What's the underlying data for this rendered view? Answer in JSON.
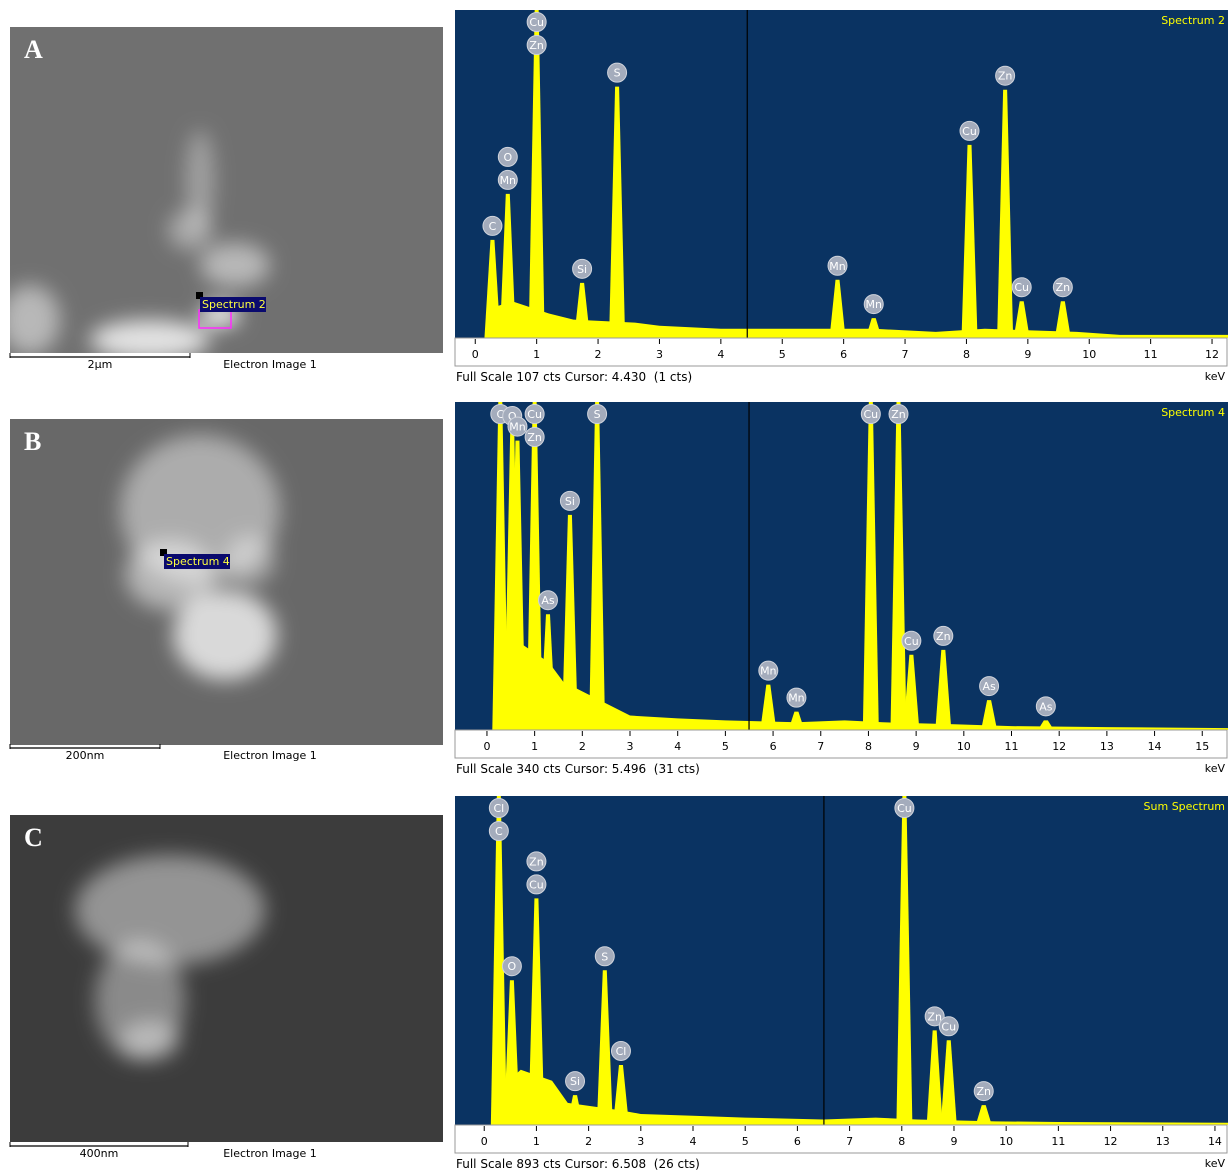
{
  "panels": [
    {
      "label": "A",
      "scale_bar": "2µm",
      "caption": "Electron Image 1",
      "marker": "Spectrum 2"
    },
    {
      "label": "B",
      "scale_bar": "200nm",
      "caption": "Electron Image 1",
      "marker": "Spectrum 4"
    },
    {
      "label": "C",
      "scale_bar": "400nm",
      "caption": "Electron Image 1"
    }
  ],
  "chart_data": [
    {
      "type": "spectrum",
      "title": "Spectrum 2",
      "full_scale": "Full Scale 107 cts",
      "cursor": "Cursor: 4.430  (1 cts)",
      "x_unit": "keV",
      "xlim": [
        -0.33,
        12.26
      ],
      "ylim": [
        0,
        107
      ],
      "xticks": [
        0,
        1,
        2,
        3,
        4,
        5,
        6,
        7,
        8,
        9,
        10,
        11,
        12
      ],
      "cursor_x": 4.43,
      "color": "#ffff00",
      "background_color": "#0a3362",
      "peaks": [
        {
          "labels": [
            "C"
          ],
          "x": 0.28,
          "value": 32
        },
        {
          "labels": [
            "O",
            "Mn"
          ],
          "x": 0.53,
          "value": 47
        },
        {
          "labels": [
            "Cu",
            "Zn"
          ],
          "x": 1.0,
          "value": 107
        },
        {
          "labels": [
            "Si"
          ],
          "x": 1.74,
          "value": 18
        },
        {
          "labels": [
            "S"
          ],
          "x": 2.31,
          "value": 82
        },
        {
          "labels": [
            "Mn"
          ],
          "x": 5.9,
          "value": 19
        },
        {
          "labels": [
            "Mn"
          ],
          "x": 6.49,
          "value": 6.5
        },
        {
          "labels": [
            "Cu"
          ],
          "x": 8.05,
          "value": 63
        },
        {
          "labels": [
            "Zn"
          ],
          "x": 8.63,
          "value": 81
        },
        {
          "labels": [
            "Cu"
          ],
          "x": 8.9,
          "value": 12
        },
        {
          "labels": [
            "Zn"
          ],
          "x": 9.57,
          "value": 12
        }
      ],
      "background": {
        "x": [
          0.15,
          0.3,
          0.6,
          1.2,
          1.6,
          2.6,
          3,
          4,
          5,
          6.5,
          7.5,
          8.3,
          9.8,
          10.5,
          12.26
        ],
        "values": [
          0,
          10,
          12,
          8,
          6,
          5,
          4,
          3,
          3,
          3,
          2,
          3,
          2,
          1,
          1
        ]
      }
    },
    {
      "type": "spectrum",
      "title": "Spectrum 4",
      "full_scale": "Full Scale 340 cts",
      "cursor": "Cursor: 5.496  (31 cts)",
      "x_unit": "keV",
      "xlim": [
        -0.67,
        15.54
      ],
      "ylim": [
        0,
        340
      ],
      "xticks": [
        0,
        1,
        2,
        3,
        4,
        5,
        6,
        7,
        8,
        9,
        10,
        11,
        12,
        13,
        14,
        15
      ],
      "cursor_x": 5.496,
      "color": "#ffff00",
      "background_color": "#0a3362",
      "peaks": [
        {
          "labels": [
            "C"
          ],
          "x": 0.28,
          "value": 340
        },
        {
          "labels": [
            "O"
          ],
          "x": 0.53,
          "value": 311
        },
        {
          "labels": [
            "Mn"
          ],
          "x": 0.64,
          "value": 300
        },
        {
          "labels": [
            "Cu",
            "Zn"
          ],
          "x": 1.0,
          "value": 340
        },
        {
          "labels": [
            "As"
          ],
          "x": 1.28,
          "value": 120
        },
        {
          "labels": [
            "Si"
          ],
          "x": 1.74,
          "value": 223
        },
        {
          "labels": [
            "S"
          ],
          "x": 2.31,
          "value": 340
        },
        {
          "labels": [
            "Mn"
          ],
          "x": 5.9,
          "value": 47
        },
        {
          "labels": [
            "Mn"
          ],
          "x": 6.49,
          "value": 19
        },
        {
          "labels": [
            "Cu"
          ],
          "x": 8.05,
          "value": 340
        },
        {
          "labels": [
            "Zn"
          ],
          "x": 8.63,
          "value": 340
        },
        {
          "labels": [
            "Cu"
          ],
          "x": 8.9,
          "value": 78
        },
        {
          "labels": [
            "Zn"
          ],
          "x": 9.57,
          "value": 83
        },
        {
          "labels": [
            "As"
          ],
          "x": 10.53,
          "value": 31
        },
        {
          "labels": [
            "As"
          ],
          "x": 11.72,
          "value": 10
        }
      ],
      "background": {
        "x": [
          0.15,
          0.3,
          0.7,
          1.3,
          1.6,
          2.6,
          3,
          4,
          5,
          6.5,
          7.5,
          8.3,
          9.8,
          11,
          13,
          15.54
        ],
        "values": [
          0,
          60,
          90,
          70,
          50,
          25,
          15,
          12,
          10,
          8,
          10,
          8,
          6,
          4,
          3,
          2
        ]
      }
    },
    {
      "type": "spectrum",
      "title": "Sum Spectrum",
      "full_scale": "Full Scale 893 cts",
      "cursor": "Cursor: 6.508  (26 cts)",
      "x_unit": "keV",
      "xlim": [
        -0.56,
        14.25
      ],
      "ylim": [
        0,
        893
      ],
      "xticks": [
        0,
        1,
        2,
        3,
        4,
        5,
        6,
        7,
        8,
        9,
        10,
        11,
        12,
        13,
        14
      ],
      "cursor_x": 6.508,
      "color": "#ffff00",
      "background_color": "#0a3362",
      "peaks": [
        {
          "labels": [
            "Cl",
            "C"
          ],
          "x": 0.28,
          "value": 893
        },
        {
          "labels": [
            "O"
          ],
          "x": 0.53,
          "value": 393
        },
        {
          "labels": [
            "Zn",
            "Cu"
          ],
          "x": 1.0,
          "value": 615
        },
        {
          "labels": [
            "Si"
          ],
          "x": 1.74,
          "value": 81
        },
        {
          "labels": [
            "S"
          ],
          "x": 2.31,
          "value": 420
        },
        {
          "labels": [
            "Cl"
          ],
          "x": 2.62,
          "value": 163
        },
        {
          "labels": [
            "Cu"
          ],
          "x": 8.05,
          "value": 893
        },
        {
          "labels": [
            "Zn"
          ],
          "x": 8.63,
          "value": 257
        },
        {
          "labels": [
            "Cu"
          ],
          "x": 8.9,
          "value": 230
        },
        {
          "labels": [
            "Zn"
          ],
          "x": 9.57,
          "value": 54
        }
      ],
      "background": {
        "x": [
          0.15,
          0.3,
          0.7,
          1.3,
          1.6,
          2.6,
          3,
          4,
          5,
          6.5,
          7.5,
          8.3,
          9.8,
          11,
          14.25
        ],
        "values": [
          0,
          100,
          150,
          120,
          60,
          40,
          30,
          25,
          20,
          15,
          20,
          15,
          10,
          8,
          6
        ]
      }
    }
  ]
}
